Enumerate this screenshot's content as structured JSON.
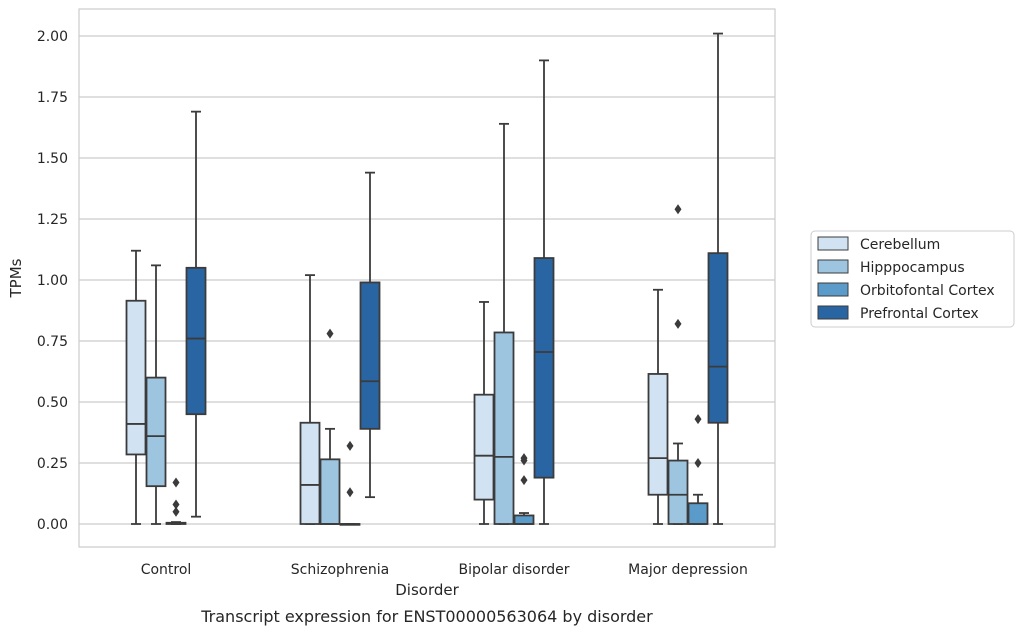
{
  "chart_data": {
    "type": "box",
    "caption": "Transcript expression for ENST00000563064 by disorder",
    "xlabel": "Disorder",
    "ylabel": "TPMs",
    "ylim": [
      -0.1,
      2.1
    ],
    "yticks": [
      "0.00",
      "0.25",
      "0.50",
      "0.75",
      "1.00",
      "1.25",
      "1.50",
      "1.75",
      "2.00"
    ],
    "grid": "horizontal",
    "legend_position": "right",
    "categories": [
      "Control",
      "Schizophrenia",
      "Bipolar disorder",
      "Major depression"
    ],
    "series": [
      {
        "name": "Cerebellum",
        "color": "#d1e2f2",
        "boxes": [
          {
            "whislo": 0.0,
            "q1": 0.285,
            "med": 0.41,
            "q3": 0.915,
            "whishi": 1.12,
            "fliers": []
          },
          {
            "whislo": 0.0,
            "q1": 0.0,
            "med": 0.16,
            "q3": 0.415,
            "whishi": 1.02,
            "fliers": []
          },
          {
            "whislo": 0.0,
            "q1": 0.1,
            "med": 0.28,
            "q3": 0.53,
            "whishi": 0.91,
            "fliers": []
          },
          {
            "whislo": 0.0,
            "q1": 0.12,
            "med": 0.27,
            "q3": 0.615,
            "whishi": 0.96,
            "fliers": []
          }
        ]
      },
      {
        "name": "Hipppocampus",
        "color": "#9dc5df",
        "boxes": [
          {
            "whislo": 0.0,
            "q1": 0.155,
            "med": 0.36,
            "q3": 0.6,
            "whishi": 1.06,
            "fliers": []
          },
          {
            "whislo": 0.0,
            "q1": 0.0,
            "med": 0.0,
            "q3": 0.265,
            "whishi": 0.39,
            "fliers": [
              0.78
            ]
          },
          {
            "whislo": 0.0,
            "q1": 0.0,
            "med": 0.275,
            "q3": 0.785,
            "whishi": 1.64,
            "fliers": []
          },
          {
            "whislo": 0.0,
            "q1": 0.0,
            "med": 0.12,
            "q3": 0.26,
            "whishi": 0.33,
            "fliers": [
              0.82,
              1.29
            ]
          }
        ]
      },
      {
        "name": "Orbitofontal Cortex",
        "color": "#5b9bc9",
        "boxes": [
          {
            "whislo": 0.0,
            "q1": 0.0,
            "med": 0.002,
            "q3": 0.005,
            "whishi": 0.008,
            "fliers": [
              0.05,
              0.08,
              0.17
            ]
          },
          {
            "whislo": 0.0,
            "q1": 0.0,
            "med": 0.0,
            "q3": 0.0,
            "whishi": 0.0,
            "fliers": [
              0.13,
              0.32
            ]
          },
          {
            "whislo": 0.0,
            "q1": 0.0,
            "med": 0.0,
            "q3": 0.035,
            "whishi": 0.045,
            "fliers": [
              0.18,
              0.26,
              0.27
            ]
          },
          {
            "whislo": 0.0,
            "q1": 0.0,
            "med": 0.0,
            "q3": 0.085,
            "whishi": 0.12,
            "fliers": [
              0.25,
              0.43
            ]
          }
        ]
      },
      {
        "name": "Prefrontal Cortex",
        "color": "#2a65a3",
        "boxes": [
          {
            "whislo": 0.03,
            "q1": 0.45,
            "med": 0.76,
            "q3": 1.05,
            "whishi": 1.69,
            "fliers": []
          },
          {
            "whislo": 0.11,
            "q1": 0.39,
            "med": 0.585,
            "q3": 0.99,
            "whishi": 1.44,
            "fliers": []
          },
          {
            "whislo": 0.0,
            "q1": 0.19,
            "med": 0.705,
            "q3": 1.09,
            "whishi": 1.9,
            "fliers": []
          },
          {
            "whislo": 0.0,
            "q1": 0.415,
            "med": 0.645,
            "q3": 1.11,
            "whishi": 2.01,
            "fliers": []
          }
        ]
      }
    ]
  }
}
